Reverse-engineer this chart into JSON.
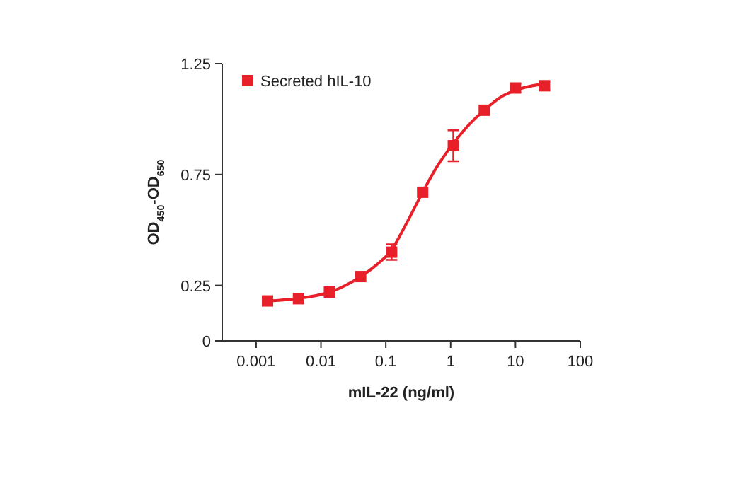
{
  "chart_data": {
    "type": "scatter",
    "xlabel": "mIL-22 (ng/ml)",
    "ylabel": "OD$_{450}$-OD$_{650}$",
    "log": "x",
    "xlim": [
      0.0003,
      100
    ],
    "xticks": [
      0.001,
      0.01,
      0.1,
      1,
      10,
      100
    ],
    "ylim": [
      0,
      1.25
    ],
    "yticks": [
      0,
      0.25,
      0.75,
      1.25
    ],
    "grid": false,
    "legend": "top left",
    "series": [
      {
        "name": "Secreted hIL-10",
        "marker": "square",
        "color": "#e8202a",
        "x": [
          0.0015,
          0.0045,
          0.0135,
          0.041,
          0.123,
          0.37,
          1.1,
          3.3,
          10,
          28
        ],
        "values": [
          0.18,
          0.19,
          0.22,
          0.29,
          0.4,
          0.67,
          0.88,
          1.04,
          1.14,
          1.15
        ],
        "errors": [
          null,
          null,
          null,
          null,
          0.035,
          null,
          0.07,
          null,
          0.02,
          0.02
        ]
      },
      {
        "type": "line",
        "color": "#e8202a",
        "line_style": "solid",
        "x": [
          0.0015,
          0.004,
          0.0137,
          0.041,
          0.07,
          0.123,
          0.2,
          0.37,
          0.6,
          1.1,
          2,
          3.3,
          6,
          10,
          30
        ],
        "values": [
          0.18,
          0.19,
          0.22,
          0.29,
          0.34,
          0.41,
          0.52,
          0.67,
          0.78,
          0.89,
          0.98,
          1.04,
          1.1,
          1.13,
          1.16
        ]
      }
    ]
  }
}
